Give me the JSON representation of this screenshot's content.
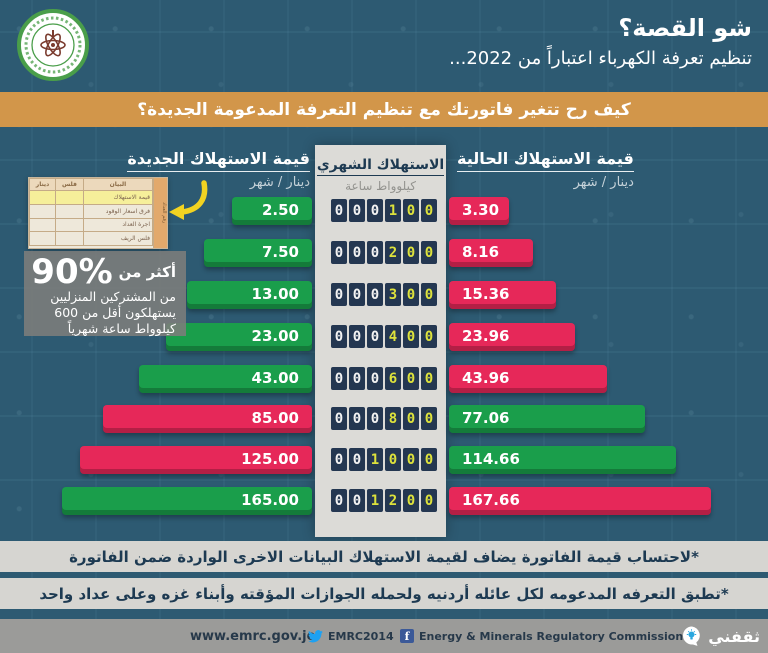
{
  "header": {
    "title": "شو القصة؟",
    "subtitle": "تنظيم تعرفة الكهرباء اعتباراً من 2022...",
    "banner": "كيف رح تتغير فاتورتك مع تنظيم التعرفة المدعومة الجديدة؟"
  },
  "columns": {
    "new": {
      "title": "قيمة الاستهلاك الجديدة",
      "unit": "دينار / شهر"
    },
    "monthly": {
      "title": "الاستهلاك الشهري",
      "unit": "كيلوواط ساعة"
    },
    "current": {
      "title": "قيمة الاستهلاك الحالية",
      "unit": "دينار / شهر"
    }
  },
  "chart_data": {
    "type": "bar",
    "title": "كيف رح تتغير فاتورتك مع تنظيم التعرفة المدعومة الجديدة؟",
    "categories_kwh": [
      100,
      200,
      300,
      400,
      600,
      800,
      1000,
      1200
    ],
    "xlabel": "الاستهلاك الشهري (كيلوواط ساعة)",
    "ylabel": "دينار / شهر",
    "series": [
      {
        "name": "قيمة الاستهلاك الجديدة",
        "values": [
          2.5,
          7.5,
          13.0,
          23.0,
          43.0,
          85.0,
          125.0,
          165.0
        ]
      },
      {
        "name": "قيمة الاستهلاك الحالية",
        "values": [
          3.3,
          8.16,
          15.36,
          23.96,
          43.96,
          77.06,
          114.66,
          167.66
        ]
      }
    ],
    "legend_position": "column-headers",
    "colors": {
      "cheaper": "#1a9e4b",
      "more_expensive": "#e62859",
      "meter_highlight": "#dde23c"
    }
  },
  "info": {
    "stat_prefix": "أكثر من",
    "stat_value": "90%",
    "stat_lines": [
      "من المشتركين المنزليين",
      "يستهلكون أقل من 600",
      "كيلوواط ساعة شهرياً"
    ],
    "bill_table": {
      "side_label": "رقم العداد",
      "headers": [
        "البيان",
        "فلس",
        "دينار"
      ],
      "rows": [
        {
          "label": "قيمة الاستهلاك",
          "highlight": true
        },
        {
          "label": "فرق اسعار الوقود",
          "highlight": false
        },
        {
          "label": "اجرة العداد",
          "highlight": false
        },
        {
          "label": "فلس الريف",
          "highlight": false
        }
      ]
    }
  },
  "notes": [
    "*لاحتساب قيمة الفاتورة يضاف لقيمة الاستهلاك البيانات الاخرى الواردة ضمن الفاتورة",
    "*تطبق التعرفه المدعومه لكل عائله أردنيه ولحمله الجوازات المؤقته وأبناء غزه وعلى عداد واحد"
  ],
  "footer": {
    "website": "www.emrc.gov.jo",
    "twitter": "EMRC2014",
    "facebook": "Energy & Minerals Regulatory Commission",
    "brand": "ثقفني"
  }
}
